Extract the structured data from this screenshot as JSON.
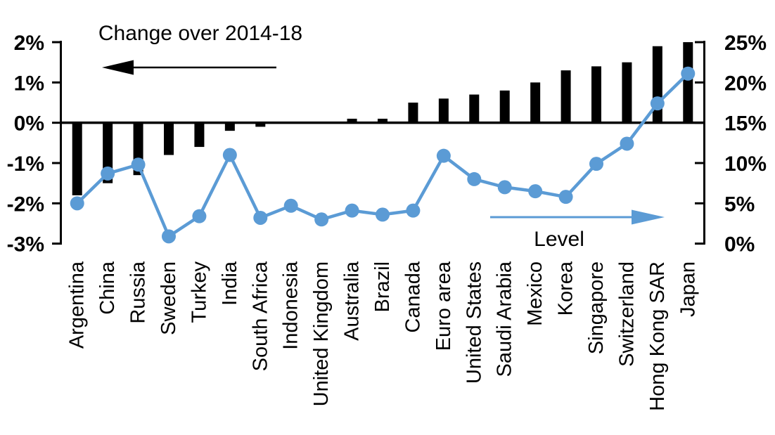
{
  "chart_data": {
    "type": "combo-bar-line-dual-axis",
    "title": "",
    "background": "#FFFFFF",
    "grid": false,
    "categories": [
      "Argentina",
      "China",
      "Russia",
      "Sweden",
      "Turkey",
      "India",
      "South Africa",
      "Indonesia",
      "United Kingdom",
      "Australia",
      "Brazil",
      "Canada",
      "Euro area",
      "United States",
      "Saudi Arabia",
      "Mexico",
      "Korea",
      "Singapore",
      "Switzerland",
      "Hong Kong SAR",
      "Japan"
    ],
    "series": [
      {
        "name": "Change over 2014-18",
        "type": "bar",
        "axis": "left",
        "color": "#000000",
        "values": [
          -1.8,
          -1.5,
          -1.3,
          -0.8,
          -0.6,
          -0.2,
          -0.1,
          0,
          0,
          0.1,
          0.1,
          0.5,
          0.6,
          0.7,
          0.8,
          1.0,
          1.3,
          1.4,
          1.5,
          1.9,
          2.0
        ]
      },
      {
        "name": "Level",
        "type": "line",
        "axis": "right",
        "color": "#5B9BD5",
        "values": [
          5.0,
          8.7,
          9.8,
          0.9,
          3.4,
          11.0,
          3.2,
          4.7,
          3.0,
          4.1,
          3.6,
          4.1,
          10.9,
          8.0,
          7.0,
          6.5,
          5.8,
          9.9,
          12.4,
          17.4,
          21.1
        ]
      }
    ],
    "left_axis": {
      "tick_labels": [
        "2%",
        "1%",
        "0%",
        "-1%",
        "-2%",
        "-3%"
      ],
      "tick_values": [
        2,
        1,
        0,
        -1,
        -2,
        -3
      ],
      "min": -3,
      "max": 2
    },
    "right_axis": {
      "tick_labels": [
        "25%",
        "20%",
        "15%",
        "10%",
        "5%",
        "0%"
      ],
      "tick_values": [
        25,
        20,
        15,
        10,
        5,
        0
      ],
      "min": 0,
      "max": 25
    },
    "annotations": {
      "bar_label": {
        "text": "Change over 2014-18",
        "arrow_direction": "left",
        "color": "#000000"
      },
      "line_label": {
        "text": "Level",
        "arrow_direction": "right",
        "color": "#5B9BD5"
      }
    }
  }
}
